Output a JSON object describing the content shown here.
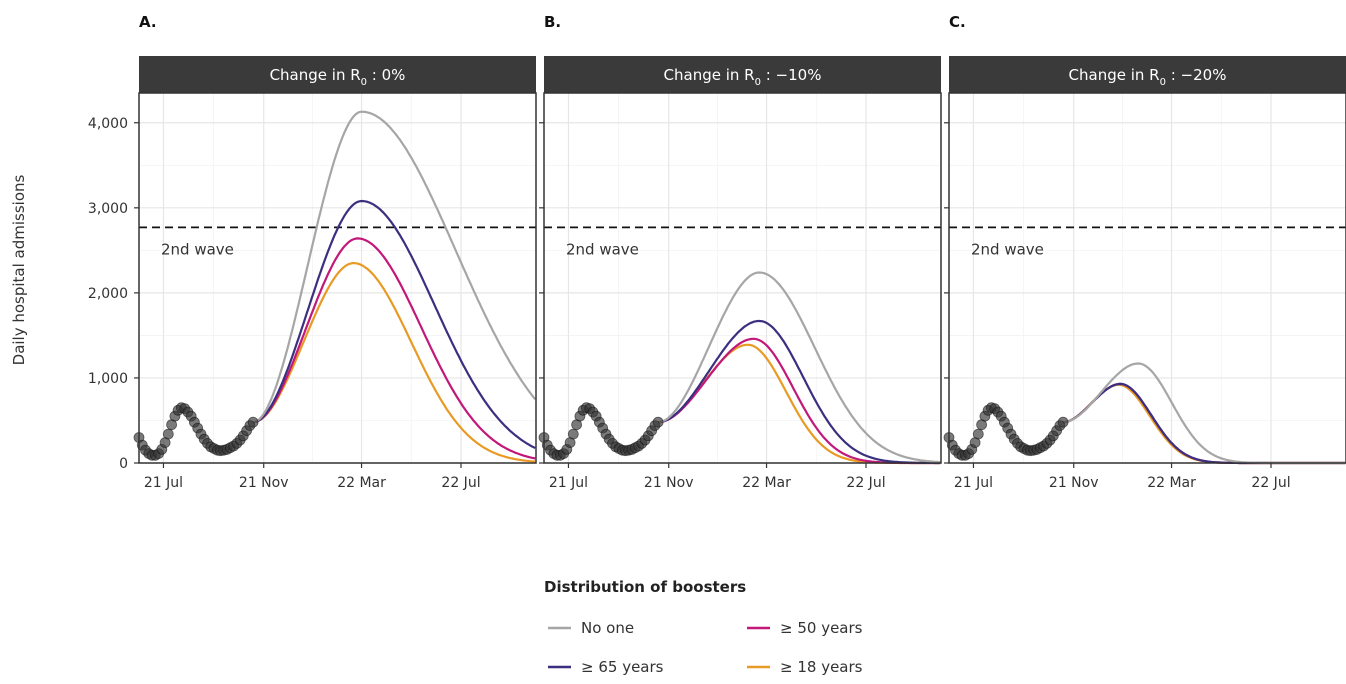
{
  "chart_data": [
    {
      "type": "line",
      "panel_letter": "A.",
      "strip_label": {
        "prefix": "Change in R",
        "subscript": "0",
        "suffix": " : 0%"
      },
      "ylabel": "Daily hospital admissions",
      "ylim": [
        0,
        4350
      ],
      "y_ticks": [
        0,
        1000,
        2000,
        3000,
        4000
      ],
      "y_tick_labels": [
        "0",
        "1,000",
        "2,000",
        "3,000",
        "4,000"
      ],
      "xlim": [
        "2021-06-01",
        "2022-10-01"
      ],
      "x_ticks": [
        "2021-07-01",
        "2021-11-01",
        "2022-03-01",
        "2022-07-01"
      ],
      "x_tick_labels": [
        "21 Jul",
        "21 Nov",
        "22 Mar",
        "22 Jul"
      ],
      "grid": true,
      "reference_line": {
        "value": 2770,
        "label": "2nd wave",
        "style": "dashed"
      },
      "series": [
        {
          "name": "No one",
          "color": "#a6a6a6",
          "peak_date": "2022-03-01",
          "peak_value": 4130
        },
        {
          "name": "≥ 65 years",
          "color": "#3b2f7f",
          "peak_date": "2022-03-01",
          "peak_value": 3080
        },
        {
          "name": "≥ 50 years",
          "color": "#c2187a",
          "peak_date": "2022-02-24",
          "peak_value": 2640
        },
        {
          "name": "≥ 18 years",
          "color": "#e89a24",
          "peak_date": "2022-02-19",
          "peak_value": 2350
        }
      ]
    },
    {
      "type": "line",
      "panel_letter": "B.",
      "strip_label": {
        "prefix": "Change in R",
        "subscript": "0",
        "suffix": " : −10%"
      },
      "ylim": [
        0,
        4350
      ],
      "y_ticks": [
        0,
        1000,
        2000,
        3000,
        4000
      ],
      "xlim": [
        "2021-06-01",
        "2022-10-01"
      ],
      "x_ticks": [
        "2021-07-01",
        "2021-11-01",
        "2022-03-01",
        "2022-07-01"
      ],
      "x_tick_labels": [
        "21 Jul",
        "21 Nov",
        "22 Mar",
        "22 Jul"
      ],
      "grid": true,
      "reference_line": {
        "value": 2770,
        "label": "2nd wave",
        "style": "dashed"
      },
      "series": [
        {
          "name": "No one",
          "color": "#a6a6a6",
          "peak_date": "2022-02-20",
          "peak_value": 2240
        },
        {
          "name": "≥ 65 years",
          "color": "#3b2f7f",
          "peak_date": "2022-02-20",
          "peak_value": 1670
        },
        {
          "name": "≥ 50 years",
          "color": "#c2187a",
          "peak_date": "2022-02-13",
          "peak_value": 1460
        },
        {
          "name": "≥ 18 years",
          "color": "#e89a24",
          "peak_date": "2022-02-06",
          "peak_value": 1390
        }
      ]
    },
    {
      "type": "line",
      "panel_letter": "C.",
      "strip_label": {
        "prefix": "Change in R",
        "subscript": "0",
        "suffix": " : −20%"
      },
      "ylim": [
        0,
        4350
      ],
      "y_ticks": [
        0,
        1000,
        2000,
        3000,
        4000
      ],
      "xlim": [
        "2021-06-01",
        "2022-10-01"
      ],
      "x_ticks": [
        "2021-07-01",
        "2021-11-01",
        "2022-03-01",
        "2022-07-01"
      ],
      "x_tick_labels": [
        "21 Jul",
        "21 Nov",
        "22 Mar",
        "22 Jul"
      ],
      "grid": true,
      "reference_line": {
        "value": 2770,
        "label": "2nd wave",
        "style": "dashed"
      },
      "series": [
        {
          "name": "No one",
          "color": "#a6a6a6",
          "peak_date": "2022-01-19",
          "peak_value": 1170
        },
        {
          "name": "≥ 65 years",
          "color": "#3b2f7f",
          "peak_date": "2021-12-28",
          "peak_value": 930
        },
        {
          "name": "≥ 50 years",
          "color": "#c2187a",
          "peak_date": "2021-12-28",
          "peak_value": 930
        },
        {
          "name": "≥ 18 years",
          "color": "#e89a24",
          "peak_date": "2021-12-26",
          "peak_value": 920
        }
      ]
    }
  ],
  "observed": {
    "color": "#333333",
    "points": [
      [
        "2021-06-01",
        300
      ],
      [
        "2021-06-05",
        210
      ],
      [
        "2021-06-09",
        150
      ],
      [
        "2021-06-13",
        110
      ],
      [
        "2021-06-17",
        90
      ],
      [
        "2021-06-21",
        90
      ],
      [
        "2021-06-25",
        110
      ],
      [
        "2021-06-29",
        160
      ],
      [
        "2021-07-03",
        240
      ],
      [
        "2021-07-07",
        340
      ],
      [
        "2021-07-11",
        450
      ],
      [
        "2021-07-15",
        550
      ],
      [
        "2021-07-19",
        620
      ],
      [
        "2021-07-23",
        650
      ],
      [
        "2021-07-27",
        640
      ],
      [
        "2021-07-31",
        600
      ],
      [
        "2021-08-04",
        550
      ],
      [
        "2021-08-08",
        480
      ],
      [
        "2021-08-12",
        410
      ],
      [
        "2021-08-16",
        340
      ],
      [
        "2021-08-20",
        280
      ],
      [
        "2021-08-24",
        230
      ],
      [
        "2021-08-28",
        190
      ],
      [
        "2021-09-01",
        170
      ],
      [
        "2021-09-05",
        150
      ],
      [
        "2021-09-09",
        145
      ],
      [
        "2021-09-13",
        150
      ],
      [
        "2021-09-17",
        160
      ],
      [
        "2021-09-21",
        180
      ],
      [
        "2021-09-25",
        200
      ],
      [
        "2021-09-29",
        230
      ],
      [
        "2021-10-03",
        270
      ],
      [
        "2021-10-07",
        320
      ],
      [
        "2021-10-11",
        380
      ],
      [
        "2021-10-15",
        440
      ],
      [
        "2021-10-19",
        480
      ]
    ]
  },
  "legend": {
    "title": "Distribution of boosters",
    "items": [
      {
        "label": "No one",
        "color": "#a6a6a6"
      },
      {
        "label": "≥ 50 years",
        "color": "#c2187a"
      },
      {
        "label": "≥ 65 years",
        "color": "#3b2f7f"
      },
      {
        "label": "≥ 18 years",
        "color": "#e89a24"
      }
    ]
  }
}
